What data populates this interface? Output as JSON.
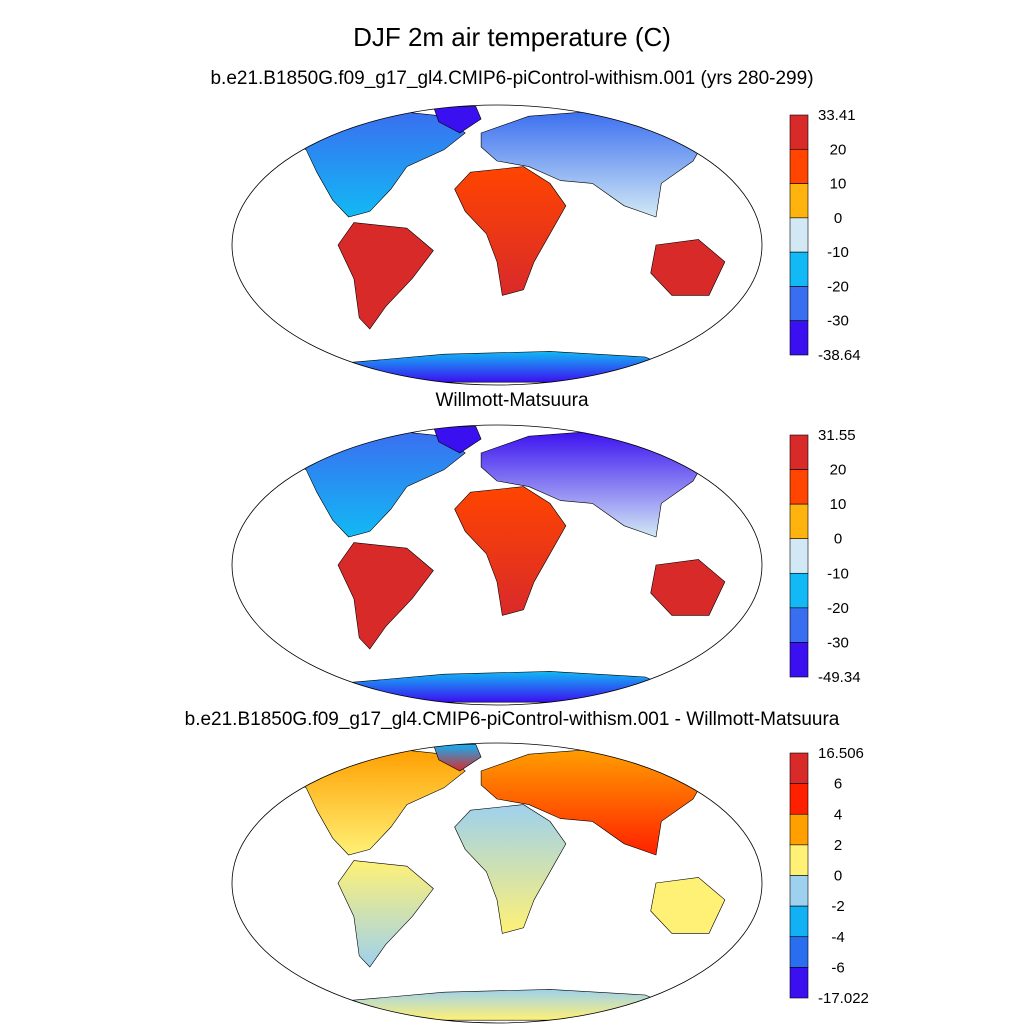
{
  "figure": {
    "title": "DJF 2m air temperature (C)"
  },
  "panels": [
    {
      "id": "model",
      "subtitle": "b.e21.B1850G.f09_g17_gl4.CMIP6-piControl-withism.001 (yrs 280-299)",
      "colorbar": {
        "labels": [
          "33.41",
          "20",
          "10",
          "0",
          "-10",
          "-20",
          "-30",
          "-38.64"
        ],
        "colors": [
          "#d92a2a",
          "#ff4500",
          "#ffb30f",
          "#d2e9f5",
          "#12b9f5",
          "#3a6ef0",
          "#3b10f0"
        ]
      }
    },
    {
      "id": "obs",
      "subtitle": "Willmott-Matsuura",
      "colorbar": {
        "labels": [
          "31.55",
          "20",
          "10",
          "0",
          "-10",
          "-20",
          "-30",
          "-49.34"
        ],
        "colors": [
          "#d92a2a",
          "#ff4500",
          "#ffb30f",
          "#d2e9f5",
          "#12b9f5",
          "#3a6ef0",
          "#3b10f0"
        ]
      }
    },
    {
      "id": "diff",
      "subtitle": "b.e21.B1850G.f09_g17_gl4.CMIP6-piControl-withism.001 - Willmott-Matsuura",
      "colorbar": {
        "labels": [
          "16.506",
          "6",
          "4",
          "2",
          "0",
          "-2",
          "-4",
          "-6",
          "-17.022"
        ],
        "colors": [
          "#d92a2a",
          "#ff2000",
          "#ff9f00",
          "#fff176",
          "#9ed1ee",
          "#12b0f5",
          "#2a6ef0",
          "#3b10f0"
        ]
      }
    }
  ]
}
